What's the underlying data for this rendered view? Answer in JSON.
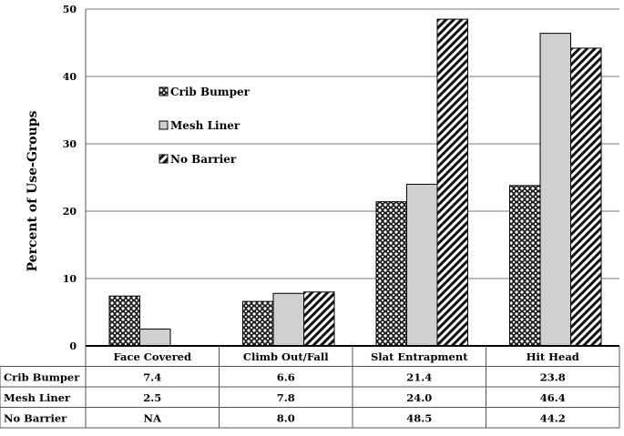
{
  "chart_data": {
    "type": "bar",
    "title": "",
    "xlabel": "",
    "ylabel": "Percent of Use-Groups",
    "ylim": [
      0,
      50
    ],
    "yticks": [
      0,
      10,
      20,
      30,
      40,
      50
    ],
    "grid": true,
    "legend_position": "upper-left inside plot",
    "categories": [
      "Face Covered",
      "Climb Out/Fall",
      "Slat Entrapment",
      "Hit Head"
    ],
    "series": [
      {
        "name": "Crib Bumper",
        "pattern": "crosshatch",
        "values": [
          7.4,
          6.6,
          21.4,
          23.8
        ],
        "labels": [
          "7.4",
          "6.6",
          "21.4",
          "23.8"
        ]
      },
      {
        "name": "Mesh Liner",
        "pattern": "solid",
        "color": "#d0d0d0",
        "values": [
          2.5,
          7.8,
          24.0,
          46.4
        ],
        "labels": [
          "2.5",
          "7.8",
          "24.0",
          "46.4"
        ]
      },
      {
        "name": "No Barrier",
        "pattern": "diagonal-stripes",
        "values": [
          null,
          8.0,
          48.5,
          44.2
        ],
        "labels": [
          "NA",
          "8.0",
          "48.5",
          "44.2"
        ]
      }
    ]
  }
}
